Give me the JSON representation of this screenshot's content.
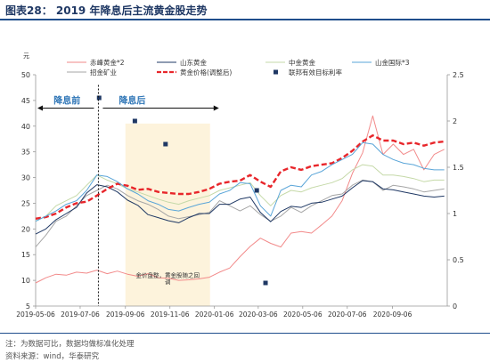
{
  "figure": {
    "title": "图表28： 2019 年降息后主流黄金股走势",
    "note": "注：为数据可比，数据均做标准化处理",
    "source": "资料来源：wind，华泰研究"
  },
  "colors": {
    "赤峰黄金*2": "#f28a8a",
    "招金矿业": "#a6a6a6",
    "山东黄金": "#1f3864",
    "中金黄金": "#c5d9a8",
    "黄金价格(调整后)": "#e8262b",
    "山金国际*3": "#5aa5d8",
    "联邦有效目标利率": "#1f3864",
    "shade": "#fdf3dc",
    "arrow_text": "#2e75b6"
  },
  "chart_data": {
    "type": "line",
    "title": "",
    "ylabel": "元",
    "ylim": [
      5,
      50
    ],
    "yticks": [
      5,
      10,
      15,
      20,
      25,
      30,
      35,
      40,
      45,
      50
    ],
    "y2lim": [
      0,
      2.5
    ],
    "y2ticks": [
      "0",
      "0.5",
      "1",
      "1.5",
      "2",
      "2.5"
    ],
    "xlim": [
      "2019-05-06",
      "2020-11-20"
    ],
    "xticks": [
      "2019-05-06",
      "2019-07-06",
      "2019-09-06",
      "2019-11-06",
      "2020-01-06",
      "2020-03-06",
      "2020-05-06",
      "2020-07-06",
      "2020-09-06"
    ],
    "grid": false,
    "legend_position": "top",
    "dates": [
      "2019-05-06",
      "2019-05-20",
      "2019-06-03",
      "2019-06-17",
      "2019-07-01",
      "2019-07-15",
      "2019-07-29",
      "2019-08-12",
      "2019-08-26",
      "2019-09-09",
      "2019-09-23",
      "2019-10-07",
      "2019-10-21",
      "2019-11-04",
      "2019-11-18",
      "2019-12-02",
      "2019-12-16",
      "2019-12-30",
      "2020-01-13",
      "2020-01-27",
      "2020-02-10",
      "2020-02-24",
      "2020-03-09",
      "2020-03-23",
      "2020-04-06",
      "2020-04-20",
      "2020-05-04",
      "2020-05-18",
      "2020-06-01",
      "2020-06-15",
      "2020-06-29",
      "2020-07-13",
      "2020-07-27",
      "2020-08-10",
      "2020-08-24",
      "2020-09-07",
      "2020-09-21",
      "2020-10-05",
      "2020-10-19",
      "2020-11-02",
      "2020-11-16"
    ],
    "series": [
      {
        "name": "赤峰黄金*2",
        "axis": "left",
        "values": [
          9.5,
          10.5,
          11.2,
          11,
          11.6,
          11.4,
          12,
          11.3,
          11.8,
          11.2,
          10.8,
          11.3,
          10.5,
          10.4,
          10,
          10.1,
          10.3,
          10.6,
          11.6,
          12.4,
          14.6,
          16.6,
          18.2,
          17.2,
          16.5,
          19.2,
          19.5,
          19.2,
          20.8,
          22.5,
          25.5,
          30.8,
          34.8,
          42,
          34.5,
          36.5,
          34.5,
          35.5,
          31.5,
          34.5,
          35.5
        ]
      },
      {
        "name": "招金矿业",
        "axis": "left",
        "values": [
          16.5,
          18.8,
          21.5,
          22.5,
          24.5,
          26.5,
          27.5,
          28.5,
          27.8,
          26.5,
          25.5,
          24.8,
          23.8,
          22.5,
          22,
          22.4,
          22.8,
          23.2,
          25.5,
          24.5,
          23.5,
          24.5,
          22.8,
          21.5,
          22.5,
          24.2,
          23.2,
          24.5,
          25.5,
          26.5,
          26.8,
          28.5,
          29.5,
          29.2,
          27.5,
          28.5,
          28.2,
          27.8,
          27.2,
          27.5,
          27.8
        ]
      },
      {
        "name": "山东黄金",
        "axis": "left",
        "values": [
          19,
          20,
          21.8,
          23,
          24.2,
          27,
          28.6,
          28.2,
          27.2,
          25.6,
          24.6,
          22.8,
          22.2,
          21.6,
          21.2,
          22.2,
          23,
          23,
          24.8,
          24.8,
          25.8,
          26.2,
          23.2,
          21.4,
          23.4,
          24.4,
          24.2,
          25,
          25.2,
          25.8,
          26.4,
          28,
          29.4,
          29.2,
          27.8,
          27.6,
          27.2,
          26.8,
          26.4,
          26.2,
          26.4
        ]
      },
      {
        "name": "中金黄金",
        "axis": "left",
        "values": [
          21.5,
          22.5,
          24.5,
          25.5,
          26.5,
          28.5,
          30.5,
          29.5,
          28.8,
          27.8,
          27.2,
          26.5,
          25.8,
          25.2,
          24.8,
          25.5,
          26,
          26.5,
          27.5,
          28,
          28.5,
          29,
          26.5,
          24.5,
          26.5,
          27.5,
          27.2,
          28,
          28.5,
          29,
          29.8,
          31.5,
          32.5,
          32.2,
          30.5,
          30.5,
          30.2,
          29.8,
          29.2,
          29.5,
          29.5
        ]
      },
      {
        "name": "黄金价格(调整后)",
        "axis": "left",
        "dashed": true,
        "values": [
          22,
          22.3,
          23,
          24.2,
          25,
          25.3,
          26.5,
          27.8,
          28.8,
          28.4,
          27.6,
          27.8,
          27.2,
          27,
          26.8,
          26.8,
          27.2,
          27.8,
          28.8,
          29.2,
          29.4,
          30.5,
          29.2,
          28.2,
          31.2,
          32,
          31.5,
          32.2,
          32.5,
          32.8,
          33.8,
          35.2,
          37,
          38.2,
          37.2,
          37.2,
          36.5,
          36.8,
          36.2,
          36.8,
          37
        ]
      },
      {
        "name": "山金国际*3",
        "axis": "left",
        "values": [
          21.5,
          22.5,
          23.5,
          24.8,
          25.5,
          27.5,
          30.5,
          30.2,
          29.2,
          27.8,
          26.8,
          25.5,
          24.8,
          23.8,
          23.5,
          24.2,
          24.8,
          25.2,
          26.8,
          27.5,
          29,
          28.8,
          24.5,
          22.5,
          27.5,
          28.5,
          28.2,
          30.5,
          31.2,
          32.5,
          33.5,
          34.5,
          36.8,
          36.5,
          34.5,
          33.5,
          32.8,
          32.5,
          31.8,
          31.5,
          31.5
        ]
      }
    ],
    "fed_rate": {
      "name": "联邦有效目标利率",
      "axis": "right",
      "points": [
        {
          "date": "2019-08-01",
          "value": 2.25
        },
        {
          "date": "2019-09-19",
          "value": 2.0
        },
        {
          "date": "2019-10-31",
          "value": 1.75
        },
        {
          "date": "2020-03-04",
          "value": 1.25
        },
        {
          "date": "2020-03-16",
          "value": 0.25
        }
      ]
    },
    "annotations": {
      "before_cut": "降息前",
      "after_cut": "降息后",
      "shaded_note": "金价盘整，黄金股随之回调",
      "cut_date": "2019-07-31",
      "shade_start": "2019-09-06",
      "shade_end": "2019-12-31"
    }
  }
}
